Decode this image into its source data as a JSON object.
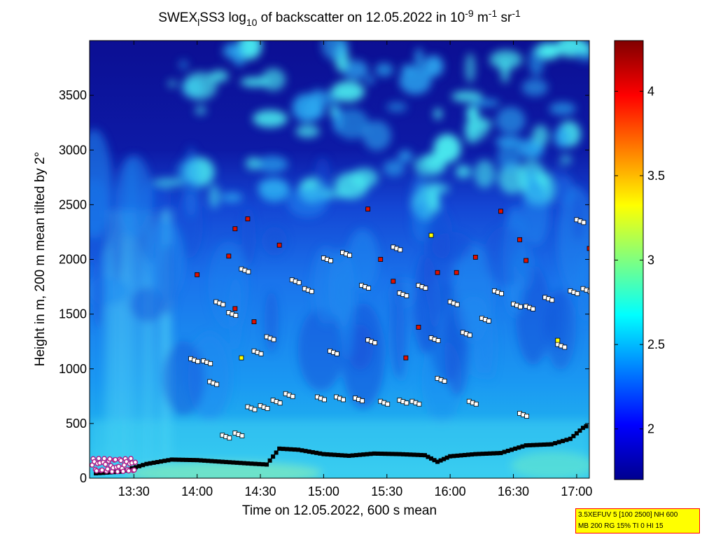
{
  "chart_data": {
    "type": "heatmap",
    "title_parts": {
      "prefix": "SWEX",
      "sub1": "l",
      "mid": "SS3 log",
      "sub2": "10",
      "mid2": " of backscatter on 12.05.2022 in 10",
      "sup1": "-9",
      "mid3": " m",
      "sup2": "-1",
      "mid4": " sr",
      "sup3": "-1"
    },
    "xlabel": "Time on 12.05.2022, 600 s mean",
    "ylabel": "Height in m, 200 m mean tilted by 2°",
    "x_range_hours": [
      13.15,
      17.1
    ],
    "y_range": [
      0,
      4000
    ],
    "x_ticks": [
      {
        "value": 13.5,
        "label": "13:30"
      },
      {
        "value": 14.0,
        "label": "14:00"
      },
      {
        "value": 14.5,
        "label": "14:30"
      },
      {
        "value": 15.0,
        "label": "15:00"
      },
      {
        "value": 15.5,
        "label": "15:30"
      },
      {
        "value": 16.0,
        "label": "16:00"
      },
      {
        "value": 16.5,
        "label": "16:30"
      },
      {
        "value": 17.0,
        "label": "17:00"
      }
    ],
    "y_ticks": [
      {
        "value": 0,
        "label": "0"
      },
      {
        "value": 500,
        "label": "500"
      },
      {
        "value": 1000,
        "label": "1000"
      },
      {
        "value": 1500,
        "label": "1500"
      },
      {
        "value": 2000,
        "label": "2000"
      },
      {
        "value": 2500,
        "label": "2500"
      },
      {
        "value": 3000,
        "label": "3000"
      },
      {
        "value": 3500,
        "label": "3500"
      }
    ],
    "colorbar": {
      "range": [
        1.7,
        4.3
      ],
      "colormap": "jet",
      "ticks": [
        {
          "value": 2,
          "label": "2"
        },
        {
          "value": 2.5,
          "label": "2.5"
        },
        {
          "value": 3,
          "label": "3"
        },
        {
          "value": 3.5,
          "label": "3.5"
        },
        {
          "value": 4,
          "label": "4"
        }
      ]
    },
    "boundary_layer_height": {
      "x": [
        13.2,
        13.4,
        13.6,
        13.8,
        14.0,
        14.2,
        14.4,
        14.55,
        14.65,
        14.8,
        15.0,
        15.2,
        15.4,
        15.6,
        15.8,
        15.9,
        16.0,
        16.2,
        16.4,
        16.6,
        16.8,
        16.95,
        17.05,
        17.1
      ],
      "y": [
        45,
        60,
        130,
        170,
        165,
        150,
        135,
        125,
        270,
        260,
        220,
        205,
        225,
        220,
        210,
        150,
        200,
        220,
        230,
        300,
        310,
        360,
        460,
        490
      ]
    },
    "layer_detections": [
      {
        "x": 13.95,
        "y": 1080
      },
      {
        "x": 14.05,
        "y": 1060
      },
      {
        "x": 14.1,
        "y": 870
      },
      {
        "x": 14.2,
        "y": 380
      },
      {
        "x": 14.3,
        "y": 400
      },
      {
        "x": 14.4,
        "y": 640
      },
      {
        "x": 14.5,
        "y": 650
      },
      {
        "x": 14.6,
        "y": 700
      },
      {
        "x": 14.7,
        "y": 760
      },
      {
        "x": 14.95,
        "y": 730
      },
      {
        "x": 15.1,
        "y": 730
      },
      {
        "x": 15.25,
        "y": 720
      },
      {
        "x": 15.45,
        "y": 690
      },
      {
        "x": 15.6,
        "y": 700
      },
      {
        "x": 15.7,
        "y": 690
      },
      {
        "x": 15.9,
        "y": 900
      },
      {
        "x": 16.15,
        "y": 690
      },
      {
        "x": 16.55,
        "y": 580
      },
      {
        "x": 14.15,
        "y": 1600
      },
      {
        "x": 14.25,
        "y": 1500
      },
      {
        "x": 14.35,
        "y": 1900
      },
      {
        "x": 14.45,
        "y": 1150
      },
      {
        "x": 14.55,
        "y": 1280
      },
      {
        "x": 14.75,
        "y": 1800
      },
      {
        "x": 14.85,
        "y": 1720
      },
      {
        "x": 15.0,
        "y": 2000
      },
      {
        "x": 15.05,
        "y": 1150
      },
      {
        "x": 15.15,
        "y": 2050
      },
      {
        "x": 15.3,
        "y": 1750
      },
      {
        "x": 15.35,
        "y": 1250
      },
      {
        "x": 15.55,
        "y": 2100
      },
      {
        "x": 15.6,
        "y": 1680
      },
      {
        "x": 15.75,
        "y": 1750
      },
      {
        "x": 15.85,
        "y": 1270
      },
      {
        "x": 16.0,
        "y": 1600
      },
      {
        "x": 16.1,
        "y": 1320
      },
      {
        "x": 16.25,
        "y": 1450
      },
      {
        "x": 16.35,
        "y": 1700
      },
      {
        "x": 16.5,
        "y": 1580
      },
      {
        "x": 16.6,
        "y": 1560
      },
      {
        "x": 16.75,
        "y": 1640
      },
      {
        "x": 16.85,
        "y": 1210
      },
      {
        "x": 16.95,
        "y": 1700
      },
      {
        "x": 17.05,
        "y": 1720
      },
      {
        "x": 17.0,
        "y": 2350
      }
    ],
    "cloud_detections": [
      {
        "x": 14.0,
        "y": 1860
      },
      {
        "x": 14.25,
        "y": 2030
      },
      {
        "x": 14.3,
        "y": 2280
      },
      {
        "x": 14.35,
        "y": 1100
      },
      {
        "x": 14.4,
        "y": 2370
      },
      {
        "x": 14.65,
        "y": 2130
      },
      {
        "x": 15.35,
        "y": 2460
      },
      {
        "x": 15.45,
        "y": 2000
      },
      {
        "x": 15.55,
        "y": 1800
      },
      {
        "x": 15.65,
        "y": 1100
      },
      {
        "x": 15.85,
        "y": 2220
      },
      {
        "x": 15.9,
        "y": 1880
      },
      {
        "x": 16.05,
        "y": 1880
      },
      {
        "x": 16.2,
        "y": 2020
      },
      {
        "x": 16.4,
        "y": 2440
      },
      {
        "x": 16.55,
        "y": 2180
      },
      {
        "x": 16.6,
        "y": 1990
      },
      {
        "x": 16.85,
        "y": 1260
      },
      {
        "x": 17.1,
        "y": 2100
      },
      {
        "x": 15.75,
        "y": 1380
      },
      {
        "x": 14.45,
        "y": 1430
      },
      {
        "x": 14.3,
        "y": 1550
      }
    ]
  },
  "info_box": {
    "line1": "3.5XEFUV 5 [100 2500] NH 600",
    "line2": "MB 200 RG 15% TI 0 HI 15"
  }
}
